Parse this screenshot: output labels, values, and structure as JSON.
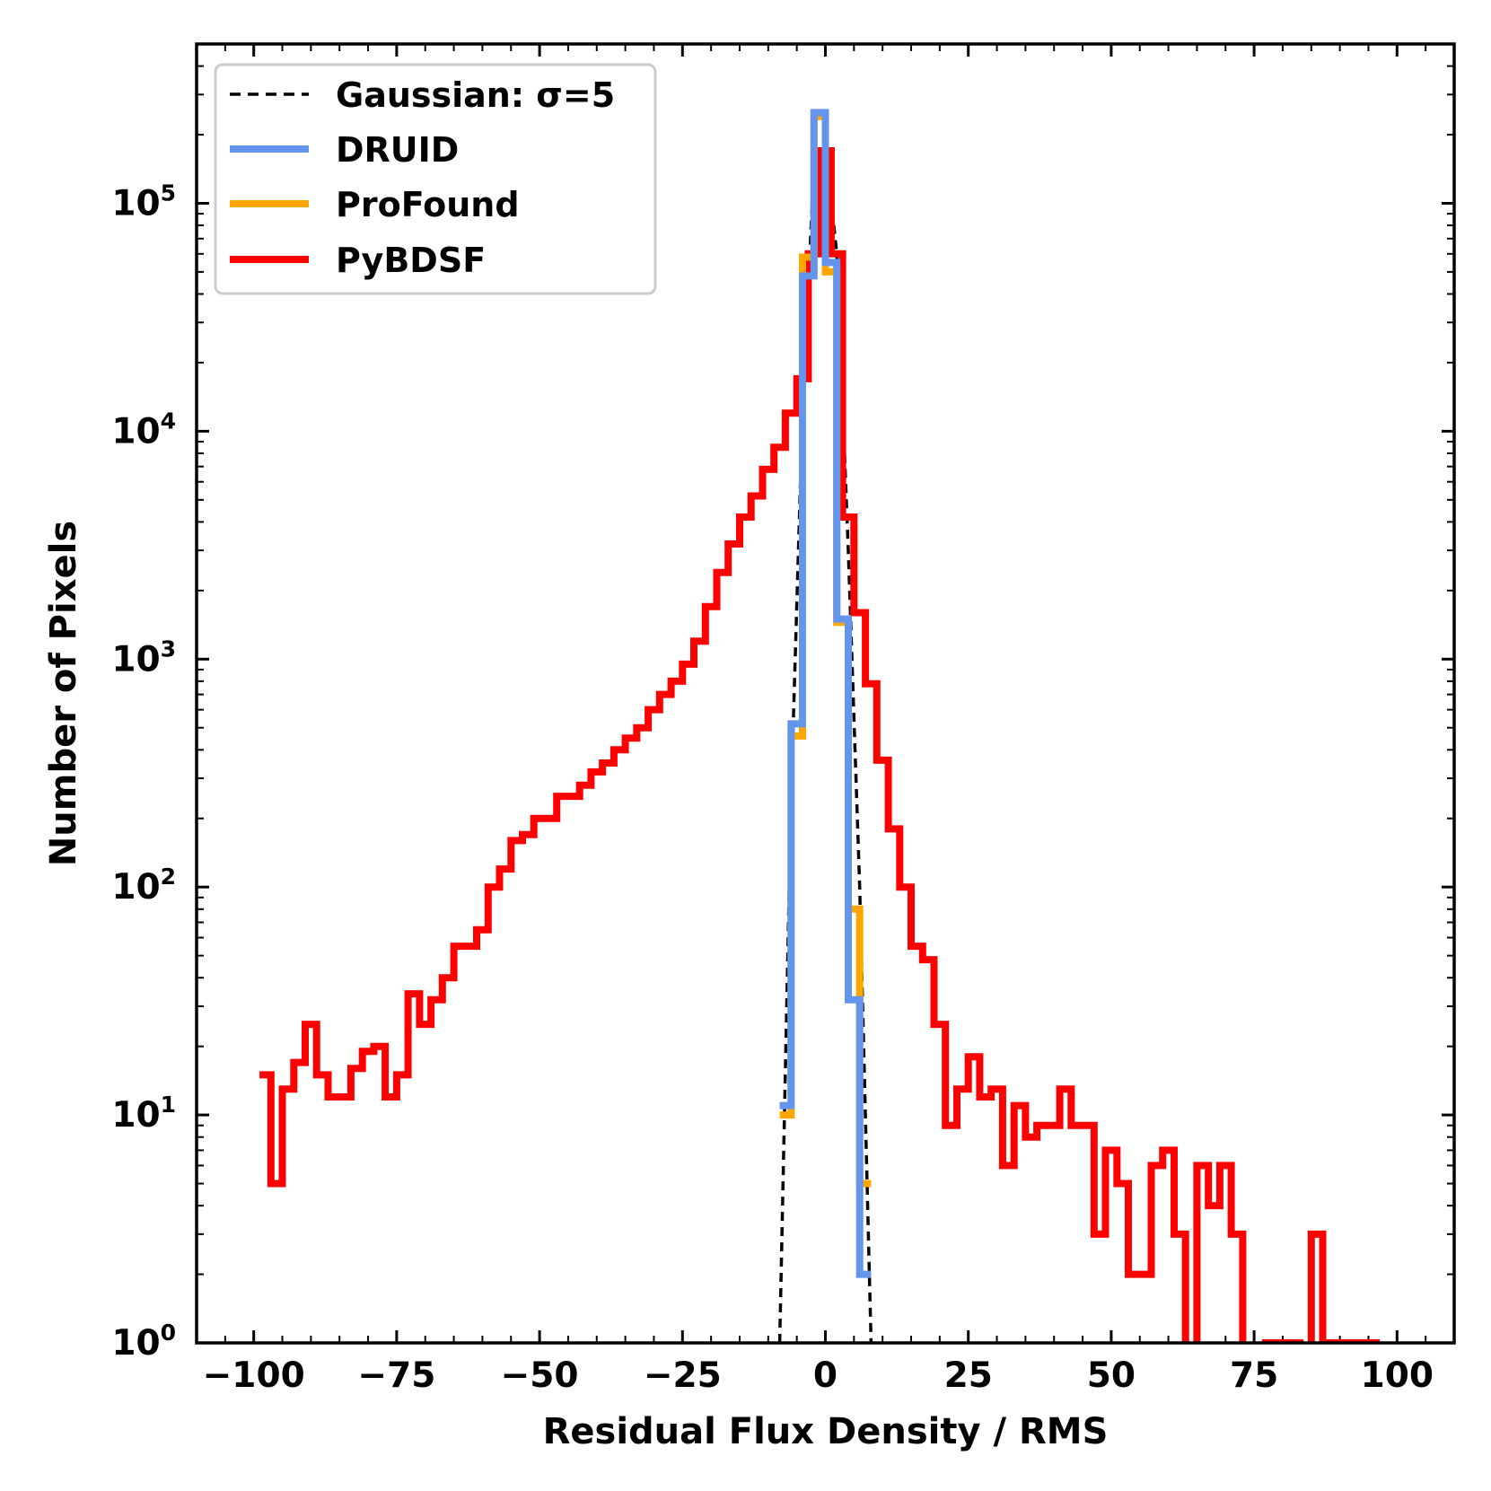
{
  "chart_data": {
    "type": "histogram-step",
    "xlabel": "Residual Flux Density / RMS",
    "ylabel": "Number of Pixels",
    "xlim": [
      -110,
      110
    ],
    "ylim": [
      1,
      500000
    ],
    "yscale": "log",
    "legend_position": "top-left",
    "xticks": [
      {
        "value": -100,
        "label": "−100"
      },
      {
        "value": -75,
        "label": "−75"
      },
      {
        "value": -50,
        "label": "−50"
      },
      {
        "value": -25,
        "label": "−25"
      },
      {
        "value": 0,
        "label": "0"
      },
      {
        "value": 25,
        "label": "25"
      },
      {
        "value": 50,
        "label": "50"
      },
      {
        "value": 75,
        "label": "75"
      },
      {
        "value": 100,
        "label": "100"
      }
    ],
    "yticks": [
      {
        "value": 1,
        "base": "10",
        "exp": "0"
      },
      {
        "value": 10,
        "base": "10",
        "exp": "1"
      },
      {
        "value": 100,
        "base": "10",
        "exp": "2"
      },
      {
        "value": 1000,
        "base": "10",
        "exp": "3"
      },
      {
        "value": 10000,
        "base": "10",
        "exp": "4"
      },
      {
        "value": 100000,
        "base": "10",
        "exp": "5"
      }
    ],
    "series": [
      {
        "name": "Gaussian: σ=5",
        "kind": "dashed-line",
        "color": "#000000",
        "x": [
          -8,
          -6,
          -4,
          -2,
          0,
          2,
          4,
          6,
          8
        ],
        "y": [
          1,
          250,
          12000,
          150000,
          180000,
          60000,
          3000,
          100,
          1
        ]
      },
      {
        "name": "DRUID",
        "kind": "step",
        "color": "#6495ED",
        "edges": [
          -8,
          -6,
          -4,
          -2,
          0,
          2,
          4,
          6,
          8
        ],
        "counts": [
          11,
          520,
          48000,
          250000,
          55000,
          1500,
          32,
          2
        ]
      },
      {
        "name": "ProFound",
        "kind": "step",
        "color": "#FFA500",
        "edges": [
          -8,
          -6,
          -4,
          -2,
          0,
          2,
          4,
          6,
          8
        ],
        "counts": [
          10,
          460,
          58000,
          240000,
          50000,
          1450,
          80,
          5
        ]
      },
      {
        "name": "PyBDSF",
        "kind": "step",
        "color": "#FF0000",
        "edges": [
          -99,
          -97,
          -95,
          -93,
          -91,
          -89,
          -87,
          -85,
          -83,
          -81,
          -79,
          -77,
          -75,
          -73,
          -71,
          -69,
          -67,
          -65,
          -63,
          -61,
          -59,
          -57,
          -55,
          -53,
          -51,
          -49,
          -47,
          -45,
          -43,
          -41,
          -39,
          -37,
          -35,
          -33,
          -31,
          -29,
          -27,
          -25,
          -23,
          -21,
          -19,
          -17,
          -15,
          -13,
          -11,
          -9,
          -7,
          -5,
          -3,
          -1,
          1,
          3,
          5,
          7,
          9,
          11,
          13,
          15,
          17,
          19,
          21,
          23,
          25,
          27,
          29,
          31,
          33,
          35,
          37,
          39,
          41,
          43,
          45,
          47,
          49,
          51,
          53,
          55,
          57,
          59,
          61,
          63,
          65,
          67,
          69,
          71,
          73,
          75,
          77,
          79,
          81,
          83,
          85,
          87,
          89,
          91,
          93,
          95,
          97
        ],
        "counts": [
          15,
          5,
          13,
          17,
          25,
          15,
          12,
          12,
          16,
          19,
          20,
          12,
          15,
          34,
          25,
          32,
          40,
          55,
          55,
          65,
          100,
          120,
          160,
          170,
          200,
          200,
          250,
          250,
          280,
          320,
          350,
          400,
          450,
          500,
          600,
          700,
          800,
          950,
          1200,
          1700,
          2400,
          3200,
          4200,
          5200,
          6800,
          8500,
          12000,
          17000,
          60000,
          170000,
          60000,
          4200,
          1600,
          780,
          360,
          180,
          100,
          55,
          48,
          25,
          9,
          13,
          18,
          12,
          13,
          6,
          11,
          8,
          9,
          9,
          13,
          9,
          9,
          3,
          7,
          5,
          2,
          2,
          6,
          7,
          3,
          0,
          6,
          4,
          6,
          3,
          0,
          0,
          1,
          1,
          1,
          0,
          3,
          1,
          1,
          1,
          1,
          1
        ]
      }
    ]
  }
}
